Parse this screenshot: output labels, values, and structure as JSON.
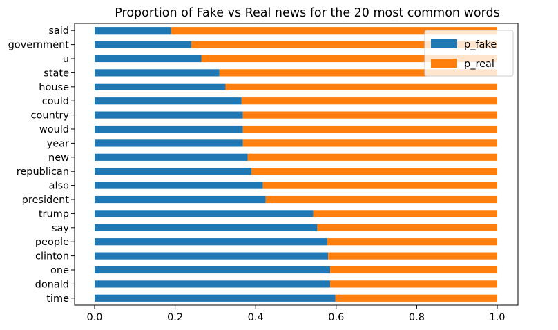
{
  "chart_data": {
    "type": "bar",
    "orientation": "horizontal",
    "stacked": true,
    "title": "Proportion of Fake vs Real news for the 20 most common words",
    "xlabel": "",
    "ylabel": "",
    "xlim": [
      0.0,
      1.0
    ],
    "x_ticks": [
      "0.0",
      "0.2",
      "0.4",
      "0.6",
      "0.8",
      "1.0"
    ],
    "grid": false,
    "legend_position": "top-right",
    "categories": [
      "said",
      "government",
      "u",
      "state",
      "house",
      "could",
      "country",
      "would",
      "year",
      "new",
      "republican",
      "also",
      "president",
      "trump",
      "say",
      "people",
      "clinton",
      "one",
      "donald",
      "time"
    ],
    "series": [
      {
        "name": "p_fake",
        "color": "#1f77b4",
        "values": [
          0.19,
          0.24,
          0.265,
          0.31,
          0.325,
          0.365,
          0.368,
          0.368,
          0.368,
          0.38,
          0.39,
          0.418,
          0.425,
          0.543,
          0.553,
          0.578,
          0.58,
          0.585,
          0.585,
          0.598
        ]
      },
      {
        "name": "p_real",
        "color": "#ff7f0e",
        "values": [
          0.81,
          0.76,
          0.735,
          0.69,
          0.675,
          0.635,
          0.632,
          0.632,
          0.632,
          0.62,
          0.61,
          0.582,
          0.575,
          0.457,
          0.447,
          0.422,
          0.42,
          0.415,
          0.415,
          0.402
        ]
      }
    ]
  }
}
